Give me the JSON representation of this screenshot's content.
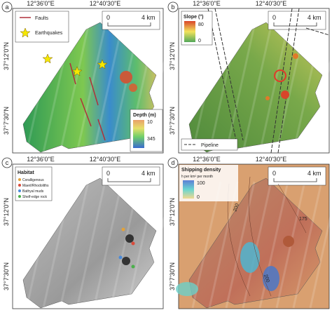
{
  "panels": [
    {
      "label": "a",
      "lon_labels": [
        "12°36'0\"E",
        "12°40'30\"E"
      ],
      "lat_labels": [
        "37°12'0\"N",
        "37°7'30\"N"
      ],
      "scale_labels": [
        "0",
        "4 km"
      ],
      "legend": [
        "Faults",
        "Earthquakes"
      ],
      "colorbar": {
        "title": "Depth (m)",
        "top": "10",
        "bottom": "345"
      }
    },
    {
      "label": "b",
      "lon_labels": [
        "12°36'0\"E",
        "12°40'30\"E"
      ],
      "lat_labels": [
        "37°12'0\"N",
        "37°7'30\"N"
      ],
      "scale_labels": [
        "0",
        "4 km"
      ],
      "colorbar": {
        "title": "Slope (°)",
        "top": "80",
        "bottom": "0"
      },
      "legend": [
        "Pipeline"
      ]
    },
    {
      "label": "c",
      "lon_labels": [
        "12°36'0\"E",
        "12°40'30\"E"
      ],
      "lat_labels": [
        "37°12'0\"N",
        "37°7'30\"N"
      ],
      "scale_labels": [
        "0",
        "4 km"
      ],
      "legend_title": "Habitat",
      "legend": [
        "Coralligenous",
        "Maerl/Rhodoliths",
        "Bathyal muds",
        "Shelf-edge rock"
      ]
    },
    {
      "label": "d",
      "lon_labels": [
        "12°36'0\"E",
        "12°40'30\"E"
      ],
      "lat_labels": [
        "37°12'0\"N",
        "37°7'30\"N"
      ],
      "scale_labels": [
        "0",
        "4 km"
      ],
      "colorbar": {
        "title": "Shipping density",
        "unit": "h per km² per month",
        "top": "100",
        "bottom": "0"
      },
      "contour_labels": [
        "200",
        "175",
        "200"
      ]
    }
  ]
}
